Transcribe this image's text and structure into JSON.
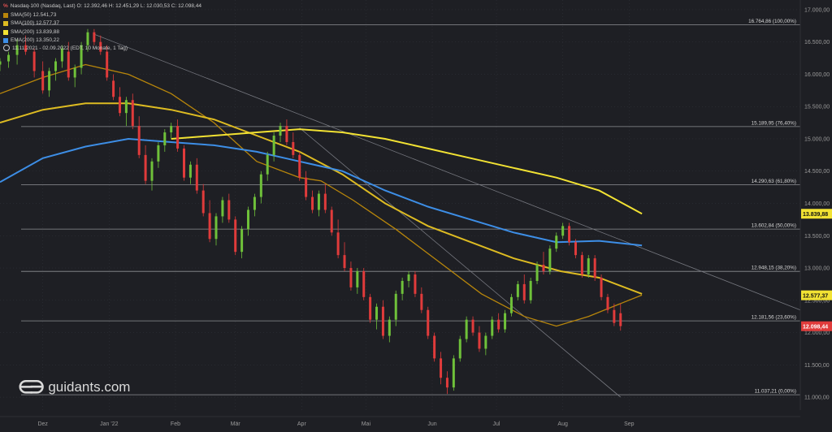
{
  "legend": {
    "header": "Nasdaq-100 (Nasdaq, Last)  O: 12.392,46  H: 12.451,29  L: 12.030,53  C: 12.098,44",
    "ma": [
      {
        "label": "SMA(50)",
        "value": "12.541,73",
        "color": "#b8860b"
      },
      {
        "label": "SMA(100)",
        "value": "12.577,37",
        "color": "#ddbb22"
      },
      {
        "label": "SMA(200)",
        "value": "13.839,88",
        "color": "#f2e233"
      },
      {
        "label": "EMA(200)",
        "value": "13.350,22",
        "color": "#3d8ee6"
      }
    ],
    "period": "11.11.2021 - 02.09.2022 (EDT, 10 Monate, 1 Tag)"
  },
  "logo": {
    "text": "guidants.com"
  },
  "colors": {
    "up": "#6fc13a",
    "down": "#e03b3b",
    "grid": "#3a3c44",
    "fib": "#8f9095",
    "trend": "#777980",
    "axis_text": "#9a9a9a"
  },
  "chart_data": {
    "type": "candlestick",
    "x_labels": [
      {
        "label": "Dez",
        "day": 20
      },
      {
        "label": "Jan '22",
        "day": 51
      },
      {
        "label": "Feb",
        "day": 82
      },
      {
        "label": "Mär",
        "day": 110
      },
      {
        "label": "Apr",
        "day": 141
      },
      {
        "label": "Mai",
        "day": 171
      },
      {
        "label": "Jun",
        "day": 202
      },
      {
        "label": "Jul",
        "day": 232
      },
      {
        "label": "Aug",
        "day": 263
      },
      {
        "label": "Sep",
        "day": 294
      }
    ],
    "x_range": [
      0,
      374
    ],
    "y_range": [
      10800,
      17150
    ],
    "y_ticks": [
      11000,
      11500,
      12000,
      12500,
      13000,
      13500,
      14000,
      14500,
      15000,
      15500,
      16000,
      16500,
      17000
    ],
    "y_tick_labels": [
      "11.000,00",
      "11.500,00",
      "12.000,00",
      "12.500,00",
      "13.000,00",
      "13.500,00",
      "14.000,00",
      "14.500,00",
      "15.000,00",
      "15.500,00",
      "16.000,00",
      "16.500,00",
      "17.000,00"
    ],
    "fib_levels": [
      {
        "value": 16764.86,
        "label": "16.764,86 (100,00%)"
      },
      {
        "value": 15189.95,
        "label": "15.189,95 (76,40%)"
      },
      {
        "value": 14290.63,
        "label": "14.290,63 (61,80%)"
      },
      {
        "value": 13602.84,
        "label": "13.602,84 (50,00%)"
      },
      {
        "value": 12948.15,
        "label": "12.948,15 (38,20%)"
      },
      {
        "value": 12181.56,
        "label": "12.181,56 (23,60%)"
      },
      {
        "value": 11037.21,
        "label": "11.037,21 (0,00%)"
      }
    ],
    "value_tags": [
      {
        "value": 13839.88,
        "label": "13.839,88",
        "color": "#f2e233",
        "text_color": "#111111"
      },
      {
        "value": 12577.37,
        "label": "12.577,37",
        "color": "#f2e233",
        "text_color": "#111111"
      },
      {
        "value": 12098.44,
        "label": "12.098,44",
        "color": "#e03b3b",
        "text_color": "#ffffff"
      }
    ],
    "series": [
      {
        "name": "SMA(50)",
        "color": "#b8860b",
        "points": [
          [
            0,
            15700
          ],
          [
            20,
            15950
          ],
          [
            40,
            16150
          ],
          [
            60,
            16000
          ],
          [
            80,
            15700
          ],
          [
            100,
            15250
          ],
          [
            120,
            14650
          ],
          [
            140,
            14400
          ],
          [
            150,
            14350
          ],
          [
            165,
            14050
          ],
          [
            185,
            13600
          ],
          [
            205,
            13100
          ],
          [
            225,
            12600
          ],
          [
            245,
            12250
          ],
          [
            260,
            12100
          ],
          [
            275,
            12250
          ],
          [
            290,
            12450
          ],
          [
            300,
            12580
          ]
        ]
      },
      {
        "name": "SMA(100)",
        "color": "#ddbb22",
        "points": [
          [
            0,
            15250
          ],
          [
            20,
            15450
          ],
          [
            40,
            15550
          ],
          [
            60,
            15550
          ],
          [
            80,
            15450
          ],
          [
            100,
            15300
          ],
          [
            120,
            15050
          ],
          [
            140,
            14800
          ],
          [
            160,
            14450
          ],
          [
            180,
            14000
          ],
          [
            200,
            13650
          ],
          [
            220,
            13400
          ],
          [
            240,
            13150
          ],
          [
            262,
            12950
          ],
          [
            280,
            12850
          ],
          [
            300,
            12600
          ]
        ]
      },
      {
        "name": "SMA(200)",
        "color": "#f2e233",
        "points": [
          [
            80,
            15000
          ],
          [
            100,
            15050
          ],
          [
            120,
            15100
          ],
          [
            140,
            15150
          ],
          [
            160,
            15100
          ],
          [
            180,
            15000
          ],
          [
            200,
            14850
          ],
          [
            220,
            14700
          ],
          [
            240,
            14550
          ],
          [
            260,
            14400
          ],
          [
            280,
            14200
          ],
          [
            300,
            13840
          ]
        ]
      },
      {
        "name": "EMA(200)",
        "color": "#3d8ee6",
        "points": [
          [
            0,
            14330
          ],
          [
            20,
            14700
          ],
          [
            40,
            14880
          ],
          [
            60,
            15000
          ],
          [
            80,
            14950
          ],
          [
            100,
            14900
          ],
          [
            120,
            14800
          ],
          [
            140,
            14650
          ],
          [
            160,
            14500
          ],
          [
            180,
            14200
          ],
          [
            200,
            13950
          ],
          [
            220,
            13750
          ],
          [
            240,
            13550
          ],
          [
            260,
            13400
          ],
          [
            280,
            13420
          ],
          [
            300,
            13350
          ]
        ]
      }
    ],
    "trendlines": [
      {
        "from": [
          44,
          16620
        ],
        "to": [
          374,
          12350
        ]
      },
      {
        "from": [
          140,
          15170
        ],
        "to": [
          290,
          11000
        ]
      }
    ],
    "candles": [
      [
        0,
        16150,
        16250,
        16050,
        16200
      ],
      [
        4,
        16200,
        16350,
        16100,
        16300
      ],
      [
        8,
        16300,
        16550,
        16150,
        16450
      ],
      [
        12,
        16450,
        16600,
        16300,
        16350
      ],
      [
        16,
        16350,
        16400,
        15950,
        16050
      ],
      [
        20,
        16050,
        16200,
        15700,
        15750
      ],
      [
        23,
        15750,
        16100,
        15650,
        16050
      ],
      [
        26,
        16050,
        16250,
        15900,
        16200
      ],
      [
        29,
        16200,
        16450,
        16100,
        16400
      ],
      [
        32,
        16350,
        16500,
        15900,
        15950
      ],
      [
        35,
        15950,
        16150,
        15800,
        16100
      ],
      [
        38,
        16100,
        16500,
        16000,
        16450
      ],
      [
        41,
        16450,
        16700,
        16350,
        16650
      ],
      [
        44,
        16650,
        16700,
        16450,
        16500
      ],
      [
        47,
        16500,
        16600,
        16300,
        16350
      ],
      [
        50,
        16350,
        16450,
        15900,
        15950
      ],
      [
        53,
        15900,
        16000,
        15600,
        15650
      ],
      [
        56,
        15650,
        15800,
        15350,
        15400
      ],
      [
        59,
        15400,
        15650,
        15200,
        15600
      ],
      [
        62,
        15600,
        15700,
        15150,
        15200
      ],
      [
        65,
        15200,
        15350,
        14700,
        14750
      ],
      [
        68,
        14750,
        14900,
        14300,
        14350
      ],
      [
        71,
        14350,
        14700,
        14200,
        14650
      ],
      [
        74,
        14650,
        14950,
        14550,
        14900
      ],
      [
        77,
        14900,
        15150,
        14800,
        15100
      ],
      [
        80,
        15100,
        15250,
        15000,
        15200
      ],
      [
        83,
        15200,
        15300,
        14800,
        14850
      ],
      [
        86,
        14850,
        14900,
        14350,
        14400
      ],
      [
        89,
        14400,
        14650,
        14300,
        14600
      ],
      [
        92,
        14600,
        14700,
        14150,
        14200
      ],
      [
        95,
        14200,
        14300,
        13800,
        13850
      ],
      [
        98,
        13850,
        14050,
        13400,
        13450
      ],
      [
        101,
        13450,
        13850,
        13350,
        13800
      ],
      [
        104,
        13800,
        14100,
        13700,
        14050
      ],
      [
        107,
        14050,
        14150,
        13700,
        13750
      ],
      [
        110,
        13750,
        13800,
        13200,
        13250
      ],
      [
        113,
        13250,
        13650,
        13150,
        13600
      ],
      [
        116,
        13600,
        13950,
        13500,
        13900
      ],
      [
        119,
        13900,
        14150,
        13800,
        14100
      ],
      [
        122,
        14100,
        14500,
        14000,
        14450
      ],
      [
        125,
        14450,
        14800,
        14350,
        14750
      ],
      [
        128,
        14750,
        15100,
        14650,
        15050
      ],
      [
        131,
        15050,
        15250,
        14950,
        15200
      ],
      [
        134,
        15200,
        15300,
        14900,
        14950
      ],
      [
        137,
        14950,
        15100,
        14700,
        14750
      ],
      [
        140,
        14750,
        14800,
        14350,
        14400
      ],
      [
        143,
        14400,
        14500,
        14050,
        14100
      ],
      [
        146,
        14100,
        14200,
        13850,
        13900
      ],
      [
        149,
        13900,
        14200,
        13800,
        14150
      ],
      [
        152,
        14150,
        14300,
        13850,
        13900
      ],
      [
        155,
        13900,
        13950,
        13500,
        13550
      ],
      [
        158,
        13550,
        13750,
        13150,
        13200
      ],
      [
        161,
        13200,
        13400,
        12950,
        13000
      ],
      [
        164,
        13000,
        13100,
        12650,
        12700
      ],
      [
        167,
        12700,
        13000,
        12600,
        12950
      ],
      [
        170,
        12950,
        13000,
        12500,
        12550
      ],
      [
        173,
        12550,
        12600,
        12150,
        12200
      ],
      [
        176,
        12200,
        12450,
        12050,
        12400
      ],
      [
        179,
        12400,
        12500,
        11900,
        11950
      ],
      [
        182,
        11950,
        12250,
        11850,
        12200
      ],
      [
        185,
        12200,
        12650,
        12100,
        12600
      ],
      [
        188,
        12600,
        12850,
        12500,
        12800
      ],
      [
        191,
        12800,
        12950,
        12700,
        12900
      ],
      [
        194,
        12900,
        12950,
        12550,
        12600
      ],
      [
        197,
        12600,
        12700,
        12300,
        12350
      ],
      [
        200,
        12350,
        12400,
        11900,
        11950
      ],
      [
        203,
        11950,
        12000,
        11550,
        11600
      ],
      [
        206,
        11600,
        11700,
        11200,
        11300
      ],
      [
        209,
        11300,
        11400,
        11050,
        11150
      ],
      [
        212,
        11150,
        11650,
        11100,
        11600
      ],
      [
        215,
        11600,
        11950,
        11550,
        11900
      ],
      [
        218,
        11900,
        12250,
        11850,
        12200
      ],
      [
        221,
        12200,
        12250,
        11950,
        12000
      ],
      [
        224,
        12000,
        12100,
        11700,
        11750
      ],
      [
        227,
        11750,
        12000,
        11650,
        11950
      ],
      [
        230,
        11950,
        12250,
        11900,
        12200
      ],
      [
        233,
        12200,
        12300,
        12000,
        12050
      ],
      [
        236,
        12050,
        12350,
        12000,
        12300
      ],
      [
        239,
        12300,
        12600,
        12250,
        12550
      ],
      [
        242,
        12550,
        12800,
        12500,
        12750
      ],
      [
        245,
        12750,
        12900,
        12450,
        12500
      ],
      [
        248,
        12500,
        12850,
        12450,
        12800
      ],
      [
        251,
        12800,
        13100,
        12750,
        13050
      ],
      [
        254,
        13050,
        13250,
        12900,
        12950
      ],
      [
        257,
        12950,
        13350,
        12900,
        13300
      ],
      [
        260,
        13300,
        13550,
        13250,
        13500
      ],
      [
        263,
        13500,
        13700,
        13450,
        13650
      ],
      [
        266,
        13650,
        13700,
        13350,
        13400
      ],
      [
        269,
        13400,
        13450,
        13150,
        13200
      ],
      [
        272,
        13200,
        13250,
        12850,
        12900
      ],
      [
        275,
        12900,
        13200,
        12850,
        13150
      ],
      [
        278,
        13150,
        13200,
        12800,
        12850
      ],
      [
        281,
        12850,
        12900,
        12500,
        12550
      ],
      [
        284,
        12550,
        12600,
        12300,
        12350
      ],
      [
        287,
        12350,
        12450,
        12100,
        12150
      ],
      [
        290,
        12300,
        12450,
        12030,
        12100
      ]
    ]
  }
}
